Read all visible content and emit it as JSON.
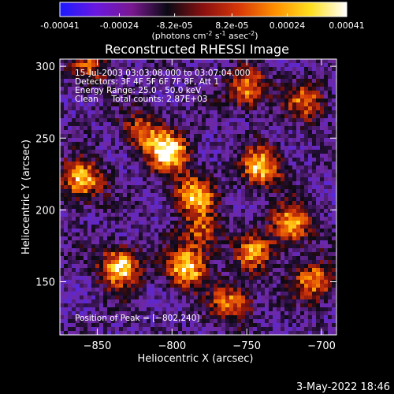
{
  "colorbar": {
    "tick_labels": [
      "-0.00041",
      "-0.00024",
      "-8.2e-05",
      "8.2e-05",
      "0.00024",
      "0.00041"
    ],
    "tick_values": [
      -0.00041,
      -0.00024,
      -8.2e-05,
      8.2e-05,
      0.00024,
      0.00041
    ],
    "range": [
      -0.00041,
      0.00041
    ],
    "units_main": "(photons cm",
    "units_exp1": "-2",
    "units_mid": " s",
    "units_exp2": "-1",
    "units_end": " asec",
    "units_exp3": "-2",
    "units_close": ")",
    "colors": [
      "#1a1aff",
      "#6a18e0",
      "#7a1890",
      "#0a0a14",
      "#8a1010",
      "#d83808",
      "#ff9000",
      "#ffe020",
      "#ffffff"
    ]
  },
  "chart_data": {
    "type": "heatmap",
    "title": "Reconstructed RHESSI Image",
    "xlabel": "Heliocentric X (arcsec)",
    "ylabel": "Heliocentric Y (arcsec)",
    "xlim": [
      -875,
      -690
    ],
    "ylim": [
      113,
      305
    ],
    "xticks": [
      -850,
      -800,
      -750,
      -700
    ],
    "xtick_labels": [
      "−850",
      "−800",
      "−750",
      "−700"
    ],
    "yticks": [
      150,
      200,
      250,
      300
    ],
    "ytick_labels": [
      "150",
      "200",
      "250",
      "300"
    ],
    "annotations": [
      "15-Jul-2003 03:03:08.000 to 03:07:04.000",
      "Detectors: 3F 4F 5F 6F 7F 8F, Att 1",
      "Energy Range: 25.0 - 50.0 keV",
      "Clean     Total counts: 2.87E+03"
    ],
    "peak_label": "Position of Peak = [−802,240]",
    "peak": {
      "x": -802,
      "y": 240
    },
    "sources": [
      {
        "x": -802,
        "y": 240,
        "amp": 1.0
      },
      {
        "x": -860,
        "y": 220,
        "amp": 0.85
      },
      {
        "x": -820,
        "y": 255,
        "amp": 0.6
      },
      {
        "x": -785,
        "y": 210,
        "amp": 0.8
      },
      {
        "x": -835,
        "y": 160,
        "amp": 0.95
      },
      {
        "x": -790,
        "y": 160,
        "amp": 0.9
      },
      {
        "x": -760,
        "y": 135,
        "amp": 0.7
      },
      {
        "x": -740,
        "y": 230,
        "amp": 0.85
      },
      {
        "x": -720,
        "y": 190,
        "amp": 0.75
      },
      {
        "x": -705,
        "y": 150,
        "amp": 0.7
      },
      {
        "x": -750,
        "y": 285,
        "amp": 0.75
      },
      {
        "x": -710,
        "y": 275,
        "amp": 0.6
      },
      {
        "x": -780,
        "y": 185,
        "amp": 0.55
      },
      {
        "x": -745,
        "y": 170,
        "amp": 0.65
      },
      {
        "x": -855,
        "y": 300,
        "amp": 0.5
      }
    ]
  },
  "footer": {
    "timestamp": "3-May-2022 18:46"
  }
}
